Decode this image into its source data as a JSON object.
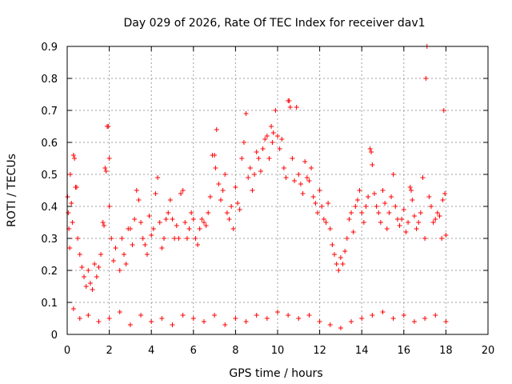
{
  "chart_data": {
    "type": "scatter",
    "marker": "plus",
    "title": "Day 029 of 2026, Rate Of TEC Index for receiver dav1",
    "xlabel": "GPS time / hours",
    "ylabel": "ROTI / TECUs",
    "xlim": [
      0,
      20
    ],
    "ylim": [
      0,
      0.9
    ],
    "xticks": [
      0,
      2,
      4,
      6,
      8,
      10,
      12,
      14,
      16,
      18,
      20
    ],
    "xtick_labels": [
      "0",
      "2",
      "4",
      "6",
      "8",
      "10",
      "12",
      "14",
      "16",
      "18",
      "20"
    ],
    "yticks": [
      0,
      0.1,
      0.2,
      0.3,
      0.4,
      0.5,
      0.6,
      0.7,
      0.8,
      0.9
    ],
    "ytick_labels": [
      "0",
      "0.1",
      "0.2",
      "0.3",
      "0.4",
      "0.5",
      "0.6",
      "0.7",
      "0.8",
      "0.9"
    ],
    "grid": true,
    "series": [
      {
        "name": "ROTI",
        "color": "#ff0000",
        "points": [
          [
            0.02,
            0.43
          ],
          [
            0.05,
            0.38
          ],
          [
            0.08,
            0.33
          ],
          [
            0.12,
            0.27
          ],
          [
            0.15,
            0.5
          ],
          [
            0.2,
            0.41
          ],
          [
            0.25,
            0.35
          ],
          [
            0.3,
            0.56
          ],
          [
            0.35,
            0.55
          ],
          [
            0.4,
            0.46
          ],
          [
            0.45,
            0.46
          ],
          [
            0.5,
            0.3
          ],
          [
            0.6,
            0.25
          ],
          [
            0.7,
            0.21
          ],
          [
            0.8,
            0.18
          ],
          [
            0.9,
            0.15
          ],
          [
            1.0,
            0.2
          ],
          [
            1.1,
            0.16
          ],
          [
            1.2,
            0.14
          ],
          [
            1.3,
            0.22
          ],
          [
            1.4,
            0.18
          ],
          [
            1.5,
            0.21
          ],
          [
            1.6,
            0.25
          ],
          [
            1.7,
            0.35
          ],
          [
            1.75,
            0.34
          ],
          [
            1.8,
            0.52
          ],
          [
            1.85,
            0.51
          ],
          [
            1.9,
            0.65
          ],
          [
            1.95,
            0.65
          ],
          [
            2.0,
            0.55
          ],
          [
            2.0,
            0.4
          ],
          [
            2.1,
            0.3
          ],
          [
            2.2,
            0.23
          ],
          [
            2.3,
            0.27
          ],
          [
            2.5,
            0.2
          ],
          [
            2.6,
            0.3
          ],
          [
            2.7,
            0.25
          ],
          [
            2.8,
            0.22
          ],
          [
            2.9,
            0.33
          ],
          [
            3.0,
            0.33
          ],
          [
            3.1,
            0.28
          ],
          [
            3.2,
            0.36
          ],
          [
            3.3,
            0.45
          ],
          [
            3.4,
            0.42
          ],
          [
            3.5,
            0.35
          ],
          [
            3.6,
            0.3
          ],
          [
            3.7,
            0.28
          ],
          [
            3.8,
            0.25
          ],
          [
            3.9,
            0.37
          ],
          [
            4.0,
            0.31
          ],
          [
            4.1,
            0.33
          ],
          [
            4.2,
            0.44
          ],
          [
            4.3,
            0.49
          ],
          [
            4.4,
            0.35
          ],
          [
            4.5,
            0.27
          ],
          [
            4.6,
            0.3
          ],
          [
            4.7,
            0.36
          ],
          [
            4.8,
            0.38
          ],
          [
            4.9,
            0.42
          ],
          [
            5.0,
            0.36
          ],
          [
            5.1,
            0.3
          ],
          [
            5.2,
            0.34
          ],
          [
            5.3,
            0.3
          ],
          [
            5.4,
            0.44
          ],
          [
            5.5,
            0.45
          ],
          [
            5.6,
            0.35
          ],
          [
            5.7,
            0.3
          ],
          [
            5.8,
            0.33
          ],
          [
            5.9,
            0.38
          ],
          [
            6.0,
            0.36
          ],
          [
            6.1,
            0.3
          ],
          [
            6.2,
            0.28
          ],
          [
            6.3,
            0.33
          ],
          [
            6.4,
            0.36
          ],
          [
            6.5,
            0.35
          ],
          [
            6.6,
            0.34
          ],
          [
            6.7,
            0.38
          ],
          [
            6.8,
            0.43
          ],
          [
            6.9,
            0.56
          ],
          [
            7.0,
            0.56
          ],
          [
            7.05,
            0.52
          ],
          [
            7.1,
            0.64
          ],
          [
            7.2,
            0.47
          ],
          [
            7.3,
            0.42
          ],
          [
            7.4,
            0.45
          ],
          [
            7.5,
            0.5
          ],
          [
            7.6,
            0.38
          ],
          [
            7.7,
            0.36
          ],
          [
            7.8,
            0.4
          ],
          [
            7.9,
            0.33
          ],
          [
            8.0,
            0.46
          ],
          [
            8.1,
            0.41
          ],
          [
            8.2,
            0.39
          ],
          [
            8.3,
            0.55
          ],
          [
            8.4,
            0.6
          ],
          [
            8.5,
            0.69
          ],
          [
            8.6,
            0.49
          ],
          [
            8.7,
            0.52
          ],
          [
            8.8,
            0.45
          ],
          [
            8.9,
            0.5
          ],
          [
            9.0,
            0.57
          ],
          [
            9.1,
            0.55
          ],
          [
            9.2,
            0.51
          ],
          [
            9.3,
            0.58
          ],
          [
            9.4,
            0.61
          ],
          [
            9.5,
            0.62
          ],
          [
            9.6,
            0.55
          ],
          [
            9.7,
            0.65
          ],
          [
            9.75,
            0.6
          ],
          [
            9.8,
            0.63
          ],
          [
            9.9,
            0.7
          ],
          [
            10.0,
            0.62
          ],
          [
            10.1,
            0.58
          ],
          [
            10.2,
            0.61
          ],
          [
            10.3,
            0.52
          ],
          [
            10.4,
            0.49
          ],
          [
            10.5,
            0.73
          ],
          [
            10.55,
            0.73
          ],
          [
            10.6,
            0.71
          ],
          [
            10.7,
            0.55
          ],
          [
            10.8,
            0.48
          ],
          [
            10.9,
            0.71
          ],
          [
            11.0,
            0.5
          ],
          [
            11.1,
            0.47
          ],
          [
            11.2,
            0.44
          ],
          [
            11.3,
            0.54
          ],
          [
            11.4,
            0.49
          ],
          [
            11.5,
            0.48
          ],
          [
            11.6,
            0.52
          ],
          [
            11.7,
            0.43
          ],
          [
            11.8,
            0.41
          ],
          [
            11.9,
            0.38
          ],
          [
            12.0,
            0.45
          ],
          [
            12.1,
            0.4
          ],
          [
            12.2,
            0.36
          ],
          [
            12.3,
            0.35
          ],
          [
            12.4,
            0.41
          ],
          [
            12.5,
            0.33
          ],
          [
            12.6,
            0.28
          ],
          [
            12.7,
            0.25
          ],
          [
            12.8,
            0.22
          ],
          [
            12.9,
            0.2
          ],
          [
            13.0,
            0.24
          ],
          [
            13.1,
            0.22
          ],
          [
            13.2,
            0.26
          ],
          [
            13.3,
            0.3
          ],
          [
            13.4,
            0.36
          ],
          [
            13.5,
            0.38
          ],
          [
            13.6,
            0.32
          ],
          [
            13.7,
            0.4
          ],
          [
            13.8,
            0.42
          ],
          [
            13.9,
            0.45
          ],
          [
            14.0,
            0.38
          ],
          [
            14.1,
            0.35
          ],
          [
            14.2,
            0.4
          ],
          [
            14.3,
            0.43
          ],
          [
            14.4,
            0.58
          ],
          [
            14.45,
            0.57
          ],
          [
            14.5,
            0.53
          ],
          [
            14.6,
            0.44
          ],
          [
            14.7,
            0.4
          ],
          [
            14.8,
            0.38
          ],
          [
            14.9,
            0.35
          ],
          [
            15.0,
            0.45
          ],
          [
            15.1,
            0.41
          ],
          [
            15.2,
            0.33
          ],
          [
            15.3,
            0.38
          ],
          [
            15.4,
            0.43
          ],
          [
            15.5,
            0.5
          ],
          [
            15.6,
            0.4
          ],
          [
            15.7,
            0.36
          ],
          [
            15.8,
            0.34
          ],
          [
            15.9,
            0.36
          ],
          [
            16.0,
            0.39
          ],
          [
            16.1,
            0.32
          ],
          [
            16.2,
            0.35
          ],
          [
            16.3,
            0.46
          ],
          [
            16.35,
            0.45
          ],
          [
            16.4,
            0.42
          ],
          [
            16.5,
            0.37
          ],
          [
            16.6,
            0.33
          ],
          [
            16.7,
            0.35
          ],
          [
            16.8,
            0.38
          ],
          [
            16.9,
            0.49
          ],
          [
            17.0,
            0.3
          ],
          [
            17.05,
            0.8
          ],
          [
            17.1,
            0.9
          ],
          [
            17.2,
            0.43
          ],
          [
            17.3,
            0.4
          ],
          [
            17.4,
            0.35
          ],
          [
            17.5,
            0.36
          ],
          [
            17.6,
            0.38
          ],
          [
            17.7,
            0.37
          ],
          [
            17.8,
            0.3
          ],
          [
            17.85,
            0.42
          ],
          [
            17.9,
            0.7
          ],
          [
            17.95,
            0.44
          ],
          [
            18.0,
            0.31
          ],
          [
            0.3,
            0.08
          ],
          [
            0.6,
            0.05
          ],
          [
            1.0,
            0.06
          ],
          [
            1.5,
            0.04
          ],
          [
            2.0,
            0.05
          ],
          [
            2.5,
            0.07
          ],
          [
            3.0,
            0.03
          ],
          [
            3.5,
            0.06
          ],
          [
            4.0,
            0.04
          ],
          [
            4.5,
            0.05
          ],
          [
            5.0,
            0.03
          ],
          [
            5.5,
            0.06
          ],
          [
            6.0,
            0.05
          ],
          [
            6.5,
            0.04
          ],
          [
            7.0,
            0.06
          ],
          [
            7.5,
            0.03
          ],
          [
            8.0,
            0.05
          ],
          [
            8.5,
            0.04
          ],
          [
            9.0,
            0.06
          ],
          [
            9.5,
            0.05
          ],
          [
            10.0,
            0.07
          ],
          [
            10.5,
            0.06
          ],
          [
            11.0,
            0.05
          ],
          [
            11.5,
            0.06
          ],
          [
            12.0,
            0.04
          ],
          [
            12.5,
            0.03
          ],
          [
            13.0,
            0.02
          ],
          [
            13.5,
            0.04
          ],
          [
            14.0,
            0.05
          ],
          [
            14.5,
            0.06
          ],
          [
            15.0,
            0.07
          ],
          [
            15.5,
            0.05
          ],
          [
            16.0,
            0.06
          ],
          [
            16.5,
            0.04
          ],
          [
            17.0,
            0.05
          ],
          [
            17.5,
            0.06
          ],
          [
            18.0,
            0.04
          ]
        ]
      }
    ]
  }
}
